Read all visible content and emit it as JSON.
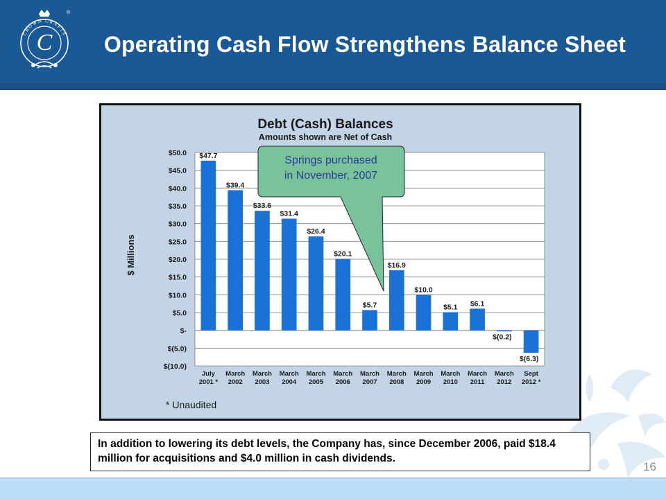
{
  "slide": {
    "title": "Operating Cash Flow Strengthens Balance Sheet",
    "page_number": "16",
    "note": "In addition to lowering its debt levels, the Company has, since December 2006, paid $18.4 million for acquisitions and $4.0 million in cash dividends.",
    "logo_text": "CROWN CRAFTS",
    "logo_monogram": "C",
    "logo_registered": "®"
  },
  "colors": {
    "header": "#1a5896",
    "bar": "#1b72d6",
    "plot_background": "#ffffff",
    "chart_background": "#c3d4e6",
    "callout_fill": "#78c39a",
    "callout_text": "#2f3a9a"
  },
  "chart_data": {
    "type": "bar",
    "title": "Debt (Cash) Balances",
    "subtitle": "Amounts shown are Net of Cash",
    "xlabel": "",
    "ylabel": "$ Millions",
    "ylim": [
      -10,
      50
    ],
    "grid": true,
    "categories": [
      [
        "July",
        "2001 *"
      ],
      [
        "March",
        "2002"
      ],
      [
        "March",
        "2003"
      ],
      [
        "March",
        "2004"
      ],
      [
        "March",
        "2005"
      ],
      [
        "March",
        "2006"
      ],
      [
        "March",
        "2007"
      ],
      [
        "March",
        "2008"
      ],
      [
        "March",
        "2009"
      ],
      [
        "March",
        "2010"
      ],
      [
        "March",
        "2011"
      ],
      [
        "March",
        "2012"
      ],
      [
        "Sept",
        "2012 *"
      ]
    ],
    "values": [
      47.7,
      39.4,
      33.6,
      31.4,
      26.4,
      20.1,
      5.7,
      16.9,
      10.0,
      5.1,
      6.1,
      -0.2,
      -6.3
    ],
    "data_labels": [
      "$47.7",
      "$39.4",
      "$33.6",
      "$31.4",
      "$26.4",
      "$20.1",
      "$5.7",
      "$16.9",
      "$10.0",
      "$5.1",
      "$6.1",
      "$(0.2)",
      "$(6.3)"
    ],
    "y_tick_labels": [
      "$(10.0)",
      "$(5.0)",
      "$-",
      "$5.0",
      "$10.0",
      "$15.0",
      "$20.0",
      "$25.0",
      "$30.0",
      "$35.0",
      "$40.0",
      "$45.0",
      "$50.0"
    ],
    "y_ticks": [
      -10,
      -5,
      0,
      5,
      10,
      15,
      20,
      25,
      30,
      35,
      40,
      45,
      50
    ],
    "callout": {
      "lines": [
        "Springs purchased",
        "in November,  2007"
      ],
      "points_to": "March 2008"
    },
    "footnote": "* Unaudited"
  }
}
